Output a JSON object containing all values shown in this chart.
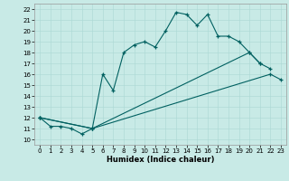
{
  "xlabel": "Humidex (Indice chaleur)",
  "xlim": [
    -0.5,
    23.5
  ],
  "ylim": [
    9.5,
    22.5
  ],
  "xticks": [
    0,
    1,
    2,
    3,
    4,
    5,
    6,
    7,
    8,
    9,
    10,
    11,
    12,
    13,
    14,
    15,
    16,
    17,
    18,
    19,
    20,
    21,
    22,
    23
  ],
  "yticks": [
    10,
    11,
    12,
    13,
    14,
    15,
    16,
    17,
    18,
    19,
    20,
    21,
    22
  ],
  "bg_color": "#c8eae6",
  "line_color": "#006060",
  "line1_x": [
    0,
    1,
    2,
    3,
    4,
    5,
    6,
    7,
    8,
    9,
    10,
    11,
    12,
    13,
    14,
    15,
    16,
    17,
    18,
    19,
    20,
    21,
    22
  ],
  "line1_y": [
    12,
    11.2,
    11.2,
    11,
    10.5,
    11,
    16,
    14.5,
    18,
    18.7,
    19,
    18.5,
    20,
    21.7,
    21.5,
    20.5,
    21.5,
    19.5,
    19.5,
    19,
    18,
    17,
    16.5
  ],
  "line2_x": [
    0,
    5,
    20,
    21
  ],
  "line2_y": [
    12,
    11,
    18,
    17
  ],
  "line3_x": [
    0,
    5,
    22,
    23
  ],
  "line3_y": [
    12,
    11,
    16,
    15.5
  ]
}
